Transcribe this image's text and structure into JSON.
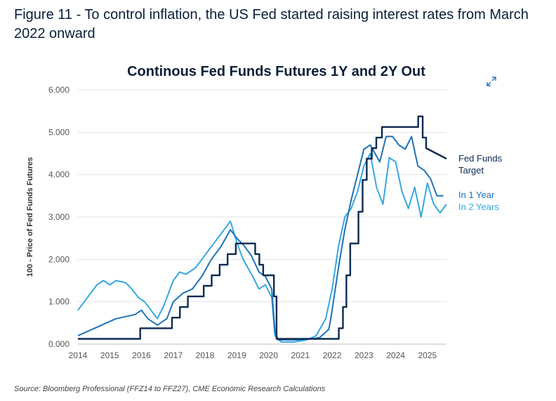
{
  "figure_title": "Figure 11 - To control inflation, the US Fed started raising interest rates from March 2022 onward",
  "source": "Source: Bloomberg Professional (FFZ14 to FFZ27), CME Economic Research Calculations",
  "icons": {
    "expand": "expand-icon"
  },
  "colors": {
    "fed_target": "#0b2a52",
    "one_year": "#1e72b8",
    "two_year": "#35a8e0",
    "title": "#0b1f3a",
    "axis": "#555555"
  },
  "chart_data": {
    "type": "line",
    "title": "Continous Fed Funds Futures 1Y and 2Y Out",
    "ylabel": "100 - Price of Fed Funds Futures",
    "xlabel": "",
    "xlim": [
      2014.0,
      2025.6
    ],
    "ylim": [
      0,
      6
    ],
    "x_ticks": [
      "2014",
      "2015",
      "2016",
      "2017",
      "2018",
      "2019",
      "2020",
      "2021",
      "2022",
      "2023",
      "2024",
      "2025"
    ],
    "y_ticks": [
      "0.000",
      "1.000",
      "2.000",
      "3.000",
      "4.000",
      "5.000",
      "6.000"
    ],
    "grid": "horizontal",
    "legend_position": "right",
    "series": [
      {
        "name": "Fed Funds Target",
        "x": [
          2014.0,
          2015.96,
          2015.96,
          2016.96,
          2016.96,
          2017.21,
          2017.21,
          2017.46,
          2017.46,
          2017.96,
          2017.96,
          2018.21,
          2018.21,
          2018.46,
          2018.46,
          2018.71,
          2018.71,
          2018.97,
          2018.97,
          2019.58,
          2019.58,
          2019.71,
          2019.71,
          2019.83,
          2019.83,
          2020.17,
          2020.17,
          2020.25,
          2020.25,
          2022.21,
          2022.21,
          2022.34,
          2022.34,
          2022.45,
          2022.45,
          2022.57,
          2022.57,
          2022.83,
          2022.83,
          2022.96,
          2022.96,
          2023.09,
          2023.09,
          2023.25,
          2023.25,
          2023.39,
          2023.39,
          2023.57,
          2023.57,
          2024.71,
          2024.71,
          2024.85,
          2024.85,
          2024.96,
          2024.96,
          2025.6
        ],
        "values": [
          0.125,
          0.125,
          0.375,
          0.375,
          0.625,
          0.625,
          0.875,
          0.875,
          1.125,
          1.125,
          1.375,
          1.375,
          1.625,
          1.625,
          1.875,
          1.875,
          2.125,
          2.125,
          2.375,
          2.375,
          2.125,
          2.125,
          1.875,
          1.875,
          1.625,
          1.625,
          1.125,
          1.125,
          0.125,
          0.125,
          0.375,
          0.375,
          0.875,
          0.875,
          1.625,
          1.625,
          2.375,
          2.375,
          3.125,
          3.125,
          3.875,
          3.875,
          4.375,
          4.375,
          4.625,
          4.625,
          4.875,
          4.875,
          5.125,
          5.125,
          5.375,
          5.375,
          4.875,
          4.875,
          4.625,
          4.375
        ]
      },
      {
        "name": "In 1 Year",
        "x": [
          2014.0,
          2014.3,
          2014.6,
          2014.9,
          2015.2,
          2015.5,
          2015.8,
          2016.0,
          2016.2,
          2016.5,
          2016.8,
          2017.0,
          2017.3,
          2017.6,
          2017.9,
          2018.2,
          2018.5,
          2018.8,
          2019.0,
          2019.2,
          2019.45,
          2019.7,
          2019.9,
          2020.1,
          2020.2,
          2020.3,
          2020.6,
          2020.9,
          2021.3,
          2021.6,
          2021.9,
          2022.0,
          2022.2,
          2022.4,
          2022.6,
          2022.8,
          2023.0,
          2023.2,
          2023.5,
          2023.7,
          2023.9,
          2024.1,
          2024.3,
          2024.5,
          2024.7,
          2024.9,
          2025.1,
          2025.3,
          2025.5
        ],
        "values": [
          0.2,
          0.3,
          0.4,
          0.5,
          0.6,
          0.65,
          0.7,
          0.8,
          0.6,
          0.45,
          0.6,
          1.0,
          1.2,
          1.3,
          1.6,
          2.0,
          2.3,
          2.7,
          2.5,
          2.35,
          2.1,
          1.7,
          1.6,
          1.3,
          0.3,
          0.1,
          0.1,
          0.1,
          0.12,
          0.15,
          0.35,
          0.8,
          1.8,
          2.7,
          3.4,
          4.0,
          4.6,
          4.7,
          4.3,
          4.9,
          4.9,
          4.7,
          4.6,
          4.9,
          4.2,
          4.1,
          3.9,
          3.5,
          3.5
        ]
      },
      {
        "name": "In 2 Years",
        "x": [
          2014.0,
          2014.2,
          2014.4,
          2014.6,
          2014.8,
          2015.0,
          2015.2,
          2015.5,
          2015.7,
          2015.9,
          2016.1,
          2016.3,
          2016.5,
          2016.7,
          2016.9,
          2017.0,
          2017.2,
          2017.4,
          2017.7,
          2017.9,
          2018.2,
          2018.5,
          2018.8,
          2019.0,
          2019.2,
          2019.5,
          2019.7,
          2019.9,
          2020.1,
          2020.2,
          2020.4,
          2020.8,
          2021.2,
          2021.5,
          2021.8,
          2022.0,
          2022.2,
          2022.4,
          2022.6,
          2022.8,
          2023.0,
          2023.2,
          2023.4,
          2023.6,
          2023.8,
          2024.0,
          2024.2,
          2024.4,
          2024.6,
          2024.8,
          2025.0,
          2025.2,
          2025.4,
          2025.6
        ],
        "values": [
          0.8,
          1.0,
          1.2,
          1.4,
          1.5,
          1.4,
          1.5,
          1.45,
          1.3,
          1.1,
          1.0,
          0.8,
          0.6,
          0.9,
          1.3,
          1.5,
          1.7,
          1.65,
          1.8,
          2.0,
          2.3,
          2.6,
          2.9,
          2.4,
          2.0,
          1.6,
          1.3,
          1.4,
          1.1,
          0.2,
          0.05,
          0.05,
          0.1,
          0.2,
          0.6,
          1.3,
          2.3,
          3.0,
          3.2,
          3.6,
          4.2,
          4.5,
          3.7,
          3.3,
          4.4,
          4.3,
          3.6,
          3.2,
          3.7,
          3.0,
          3.8,
          3.3,
          3.1,
          3.3
        ]
      }
    ],
    "legend": [
      {
        "label_lines": [
          "Fed Funds",
          "Target"
        ],
        "series": "Fed Funds Target"
      },
      {
        "label_lines": [
          "In 1 Year"
        ],
        "series": "In 1 Year"
      },
      {
        "label_lines": [
          "In 2 Years"
        ],
        "series": "In 2 Years"
      }
    ]
  }
}
